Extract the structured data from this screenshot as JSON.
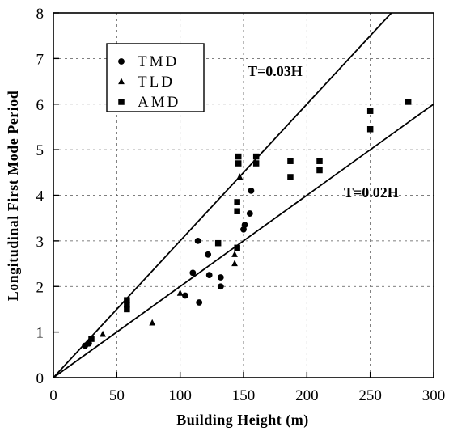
{
  "chart_data": {
    "type": "scatter",
    "title": "",
    "xlabel": "Building Height (m)",
    "ylabel": "Longitudinal First Mode Period",
    "xlim": [
      0,
      300
    ],
    "ylim": [
      0,
      8
    ],
    "xticks": [
      0,
      50,
      100,
      150,
      200,
      250,
      300
    ],
    "yticks": [
      0,
      1,
      2,
      3,
      4,
      5,
      6,
      7,
      8
    ],
    "grid": true,
    "legend_position": "top-left",
    "series": [
      {
        "name": "TMD",
        "marker": "circle",
        "points": [
          {
            "x": 25,
            "y": 0.7
          },
          {
            "x": 28,
            "y": 0.75
          },
          {
            "x": 104,
            "y": 1.8
          },
          {
            "x": 110,
            "y": 2.3
          },
          {
            "x": 114,
            "y": 3.0
          },
          {
            "x": 115,
            "y": 1.65
          },
          {
            "x": 122,
            "y": 2.7
          },
          {
            "x": 123,
            "y": 2.25
          },
          {
            "x": 132,
            "y": 2.0
          },
          {
            "x": 132,
            "y": 2.2
          },
          {
            "x": 150,
            "y": 3.25
          },
          {
            "x": 151,
            "y": 3.35
          },
          {
            "x": 155,
            "y": 3.6
          },
          {
            "x": 156,
            "y": 4.1
          }
        ]
      },
      {
        "name": "TLD",
        "marker": "triangle",
        "points": [
          {
            "x": 39,
            "y": 0.95
          },
          {
            "x": 78,
            "y": 1.2
          },
          {
            "x": 100,
            "y": 1.85
          },
          {
            "x": 143,
            "y": 2.5
          },
          {
            "x": 143,
            "y": 2.7
          },
          {
            "x": 147,
            "y": 4.4
          }
        ]
      },
      {
        "name": "AMD",
        "marker": "square",
        "points": [
          {
            "x": 30,
            "y": 0.85
          },
          {
            "x": 58,
            "y": 1.5
          },
          {
            "x": 58,
            "y": 1.6
          },
          {
            "x": 58,
            "y": 1.7
          },
          {
            "x": 130,
            "y": 2.95
          },
          {
            "x": 145,
            "y": 2.85
          },
          {
            "x": 145,
            "y": 3.65
          },
          {
            "x": 145,
            "y": 3.85
          },
          {
            "x": 146,
            "y": 4.7
          },
          {
            "x": 146,
            "y": 4.85
          },
          {
            "x": 160,
            "y": 4.7
          },
          {
            "x": 160,
            "y": 4.85
          },
          {
            "x": 187,
            "y": 4.4
          },
          {
            "x": 187,
            "y": 4.75
          },
          {
            "x": 210,
            "y": 4.55
          },
          {
            "x": 210,
            "y": 4.75
          },
          {
            "x": 250,
            "y": 5.45
          },
          {
            "x": 250,
            "y": 5.85
          },
          {
            "x": 280,
            "y": 6.05
          }
        ]
      }
    ],
    "reference_lines": [
      {
        "label": "T=0.03H",
        "slope": 0.03
      },
      {
        "label": "T=0.02H",
        "slope": 0.02
      }
    ]
  }
}
